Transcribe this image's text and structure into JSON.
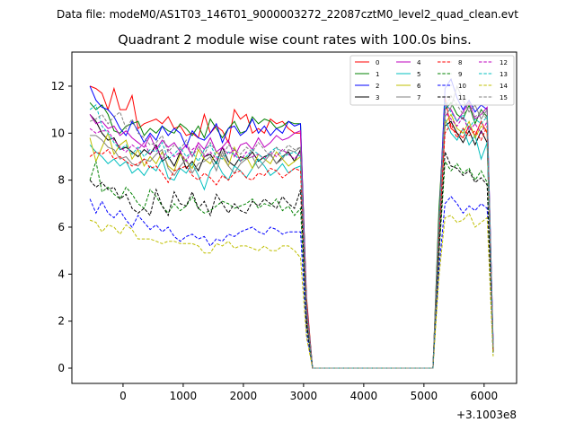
{
  "suptitle": "Data file: modeM0/AS1T03_146T01_9000003272_22087cztM0_level2_quad_clean.evt",
  "chart_data": {
    "type": "line",
    "title": "Quadrant 2 module wise count rates with 100.0s bins.",
    "xlabel": "",
    "ylabel": "",
    "x_offset_label": "+3.1003e8",
    "xlim": [
      -850,
      6540
    ],
    "ylim": [
      -0.65,
      13.45
    ],
    "xticks": [
      0,
      1000,
      2000,
      3000,
      4000,
      5000,
      6000
    ],
    "yticks": [
      0,
      2,
      4,
      6,
      8,
      10,
      12
    ],
    "grid": false,
    "legend_placement": "top-right",
    "x": [
      -550,
      -450,
      -350,
      -250,
      -150,
      -50,
      50,
      150,
      250,
      350,
      450,
      550,
      650,
      750,
      850,
      950,
      1050,
      1150,
      1250,
      1350,
      1450,
      1550,
      1650,
      1750,
      1850,
      1950,
      2050,
      2150,
      2250,
      2350,
      2450,
      2550,
      2650,
      2750,
      2850,
      2950,
      3050,
      3150,
      3250,
      3350,
      3450,
      3550,
      3650,
      3750,
      3850,
      3950,
      4050,
      4150,
      4250,
      4350,
      4450,
      4550,
      4650,
      4750,
      4850,
      4950,
      5050,
      5150,
      5250,
      5350,
      5450,
      5550,
      5650,
      5750,
      5850,
      5950,
      6050,
      6150
    ],
    "series": [
      {
        "name": "0",
        "color": "#ff0000",
        "dashed": false,
        "values": [
          12.0,
          11.9,
          11.7,
          11.0,
          11.9,
          11.0,
          11.0,
          11.6,
          10.2,
          10.4,
          10.5,
          10.6,
          10.4,
          10.7,
          10.2,
          10.3,
          9.9,
          10.0,
          9.8,
          10.8,
          10.0,
          10.3,
          10.1,
          9.6,
          11.0,
          10.6,
          10.8,
          10.0,
          10.2,
          10.0,
          10.6,
          10.4,
          10.5,
          10.2,
          10.0,
          10.0,
          3.0,
          0,
          0,
          0,
          0,
          0,
          0,
          0,
          0,
          0,
          0,
          0,
          0,
          0,
          0,
          0,
          0,
          0,
          0,
          0,
          0,
          0,
          6.5,
          11.5,
          10.2,
          10.0,
          9.8,
          10.3,
          9.9,
          10.5,
          10.0,
          1.0
        ]
      },
      {
        "name": "1",
        "color": "#008000",
        "dashed": false,
        "values": [
          11.3,
          11.0,
          11.2,
          10.8,
          10.1,
          10.0,
          10.3,
          10.4,
          10.5,
          9.9,
          10.2,
          10.0,
          10.3,
          10.1,
          10.0,
          10.4,
          10.2,
          9.9,
          10.3,
          9.8,
          10.6,
          10.2,
          9.8,
          10.2,
          10.5,
          10.0,
          10.1,
          10.7,
          10.4,
          10.6,
          10.5,
          10.2,
          10.3,
          10.5,
          10.4,
          10.4,
          2.8,
          0,
          0,
          0,
          0,
          0,
          0,
          0,
          0,
          0,
          0,
          0,
          0,
          0,
          0,
          0,
          0,
          0,
          0,
          0,
          0,
          0,
          6.8,
          11.0,
          11.3,
          10.8,
          10.6,
          11.2,
          10.4,
          11.0,
          10.7,
          0.9
        ]
      },
      {
        "name": "2",
        "color": "#0000ff",
        "dashed": false,
        "values": [
          12.0,
          11.4,
          11.1,
          11.0,
          10.7,
          10.2,
          9.9,
          10.5,
          10.1,
          9.6,
          10.0,
          9.7,
          10.3,
          9.9,
          10.2,
          10.0,
          9.4,
          10.1,
          9.8,
          9.7,
          10.0,
          10.4,
          9.6,
          10.2,
          10.3,
          9.9,
          10.1,
          10.6,
          10.0,
          10.3,
          9.9,
          10.2,
          10.0,
          10.5,
          10.3,
          10.4,
          2.6,
          0,
          0,
          0,
          0,
          0,
          0,
          0,
          0,
          0,
          0,
          0,
          0,
          0,
          0,
          0,
          0,
          0,
          0,
          0,
          0,
          0,
          6.0,
          11.9,
          12.3,
          11.5,
          11.0,
          11.4,
          10.9,
          11.2,
          11.0,
          1.1
        ]
      },
      {
        "name": "3",
        "color": "#000000",
        "dashed": false,
        "values": [
          10.8,
          10.5,
          10.0,
          9.7,
          9.8,
          9.3,
          9.4,
          9.2,
          9.0,
          9.3,
          9.1,
          9.5,
          8.8,
          9.0,
          8.6,
          9.2,
          8.5,
          8.8,
          8.4,
          9.0,
          9.1,
          8.7,
          9.4,
          8.8,
          8.6,
          9.0,
          8.9,
          9.2,
          8.8,
          9.0,
          9.1,
          8.7,
          9.0,
          9.2,
          8.8,
          9.3,
          2.2,
          0,
          0,
          0,
          0,
          0,
          0,
          0,
          0,
          0,
          0,
          0,
          0,
          0,
          0,
          0,
          0,
          0,
          0,
          0,
          0,
          0,
          5.5,
          10.3,
          10.5,
          10.0,
          9.6,
          10.1,
          9.5,
          10.1,
          9.6,
          0.8
        ]
      },
      {
        "name": "4",
        "color": "#bf00bf",
        "dashed": false,
        "values": [
          10.8,
          10.4,
          10.5,
          10.2,
          10.3,
          9.9,
          10.1,
          9.8,
          9.6,
          9.4,
          9.9,
          9.3,
          9.7,
          9.4,
          9.6,
          9.2,
          9.5,
          9.0,
          9.6,
          9.3,
          9.8,
          9.2,
          9.4,
          9.7,
          9.0,
          9.5,
          9.6,
          9.3,
          9.8,
          9.4,
          9.6,
          9.9,
          9.7,
          9.8,
          10.0,
          10.1,
          2.7,
          0,
          0,
          0,
          0,
          0,
          0,
          0,
          0,
          0,
          0,
          0,
          0,
          0,
          0,
          0,
          0,
          0,
          0,
          0,
          0,
          0,
          6.2,
          11.2,
          11.0,
          10.5,
          10.9,
          11.3,
          10.6,
          10.8,
          11.1,
          1.0
        ]
      },
      {
        "name": "5",
        "color": "#00bfbf",
        "dashed": false,
        "values": [
          9.5,
          9.2,
          9.0,
          8.7,
          8.9,
          8.6,
          8.8,
          8.3,
          8.5,
          8.2,
          8.6,
          8.4,
          8.9,
          8.1,
          8.0,
          8.5,
          8.3,
          8.7,
          8.2,
          7.6,
          8.4,
          8.8,
          8.3,
          8.0,
          8.6,
          8.4,
          8.1,
          8.5,
          8.9,
          8.6,
          8.2,
          8.4,
          8.7,
          8.3,
          8.5,
          8.6,
          2.4,
          0,
          0,
          0,
          0,
          0,
          0,
          0,
          0,
          0,
          0,
          0,
          0,
          0,
          0,
          0,
          0,
          0,
          0,
          0,
          0,
          0,
          5.7,
          10.6,
          10.0,
          9.7,
          10.2,
          9.5,
          9.9,
          8.9,
          9.6,
          0.9
        ]
      },
      {
        "name": "6",
        "color": "#bfbf00",
        "dashed": false,
        "values": [
          9.8,
          8.8,
          9.4,
          10.0,
          9.1,
          9.5,
          9.7,
          8.9,
          9.3,
          8.6,
          9.0,
          8.7,
          9.2,
          8.6,
          8.4,
          9.1,
          8.8,
          8.5,
          9.3,
          8.9,
          8.7,
          9.2,
          9.0,
          8.6,
          9.4,
          8.8,
          9.0,
          8.5,
          9.1,
          8.9,
          8.7,
          9.2,
          8.9,
          8.6,
          8.8,
          9.0,
          2.3,
          0,
          0,
          0,
          0,
          0,
          0,
          0,
          0,
          0,
          0,
          0,
          0,
          0,
          0,
          0,
          0,
          0,
          0,
          0,
          0,
          0,
          5.8,
          10.4,
          10.8,
          10.2,
          10.0,
          10.5,
          9.8,
          10.3,
          10.1,
          0.7
        ]
      },
      {
        "name": "7",
        "color": "#808080",
        "dashed": false,
        "values": [
          9.9,
          9.9,
          9.7,
          9.4,
          9.3,
          8.9,
          9.0,
          8.7,
          8.6,
          8.9,
          8.8,
          9.1,
          9.3,
          8.5,
          8.2,
          8.6,
          8.9,
          8.3,
          8.7,
          8.8,
          9.0,
          8.4,
          9.2,
          8.6,
          8.3,
          8.7,
          8.9,
          9.0,
          8.5,
          8.8,
          9.1,
          8.7,
          8.9,
          9.3,
          9.2,
          9.4,
          2.5,
          0,
          0,
          0,
          0,
          0,
          0,
          0,
          0,
          0,
          0,
          0,
          0,
          0,
          0,
          0,
          0,
          0,
          0,
          0,
          0,
          0,
          6.1,
          10.7,
          11.1,
          12.0,
          11.4,
          10.9,
          11.2,
          10.6,
          11.0,
          0.9
        ]
      },
      {
        "name": "8",
        "color": "#ff0000",
        "dashed": true,
        "values": [
          9.0,
          9.2,
          9.1,
          9.3,
          8.9,
          9.0,
          8.8,
          8.6,
          8.7,
          8.9,
          8.5,
          8.6,
          8.3,
          7.9,
          8.4,
          8.5,
          8.6,
          8.2,
          8.0,
          8.3,
          8.1,
          7.8,
          8.2,
          8.0,
          8.3,
          8.4,
          8.1,
          8.0,
          8.3,
          8.2,
          8.5,
          8.4,
          8.1,
          8.3,
          8.5,
          8.4,
          2.3,
          0,
          0,
          0,
          0,
          0,
          0,
          0,
          0,
          0,
          0,
          0,
          0,
          0,
          0,
          0,
          0,
          0,
          0,
          0,
          0,
          0,
          5.6,
          10.0,
          10.4,
          9.8,
          10.2,
          9.9,
          10.1,
          9.7,
          10.3,
          0.8
        ]
      },
      {
        "name": "9",
        "color": "#008000",
        "dashed": true,
        "values": [
          8.0,
          8.8,
          7.5,
          7.7,
          7.4,
          7.2,
          7.7,
          7.4,
          7.0,
          6.8,
          7.6,
          7.3,
          6.9,
          6.6,
          7.0,
          6.7,
          6.9,
          7.3,
          6.8,
          6.6,
          6.7,
          6.9,
          7.1,
          7.0,
          6.8,
          6.9,
          7.0,
          7.2,
          6.8,
          7.0,
          6.9,
          7.2,
          6.7,
          6.9,
          6.5,
          6.8,
          1.8,
          0,
          0,
          0,
          0,
          0,
          0,
          0,
          0,
          0,
          0,
          0,
          0,
          0,
          0,
          0,
          0,
          0,
          0,
          0,
          0,
          0,
          4.8,
          8.8,
          8.4,
          8.7,
          8.3,
          8.5,
          8.0,
          8.4,
          7.9,
          0.6
        ]
      },
      {
        "name": "10",
        "color": "#0000ff",
        "dashed": true,
        "values": [
          7.2,
          6.6,
          7.1,
          6.6,
          6.4,
          6.7,
          6.3,
          6.0,
          6.5,
          6.2,
          5.9,
          6.1,
          5.8,
          6.0,
          5.6,
          5.4,
          5.6,
          5.7,
          5.5,
          5.6,
          5.2,
          5.5,
          5.4,
          5.7,
          5.6,
          5.8,
          5.9,
          6.0,
          5.8,
          5.7,
          6.0,
          5.9,
          5.7,
          5.8,
          5.8,
          5.8,
          1.5,
          0,
          0,
          0,
          0,
          0,
          0,
          0,
          0,
          0,
          0,
          0,
          0,
          0,
          0,
          0,
          0,
          0,
          0,
          0,
          0,
          0,
          4.2,
          7.0,
          7.3,
          7.0,
          6.6,
          6.9,
          6.7,
          7.0,
          6.8,
          0.6
        ]
      },
      {
        "name": "11",
        "color": "#000000",
        "dashed": true,
        "values": [
          8.0,
          7.7,
          7.9,
          7.6,
          7.7,
          7.2,
          7.4,
          6.8,
          6.6,
          6.8,
          6.5,
          7.6,
          6.9,
          6.5,
          7.5,
          7.0,
          6.9,
          7.5,
          6.8,
          7.1,
          6.5,
          7.4,
          7.0,
          6.6,
          7.0,
          6.7,
          6.6,
          7.1,
          6.9,
          7.2,
          7.0,
          6.8,
          7.3,
          7.0,
          6.8,
          7.6,
          1.9,
          0,
          0,
          0,
          0,
          0,
          0,
          0,
          0,
          0,
          0,
          0,
          0,
          0,
          0,
          0,
          0,
          0,
          0,
          0,
          0,
          0,
          5.0,
          9.2,
          8.6,
          8.5,
          8.2,
          8.4,
          7.9,
          8.1,
          7.8,
          0.7
        ]
      },
      {
        "name": "12",
        "color": "#bf00bf",
        "dashed": true,
        "values": [
          10.2,
          10.0,
          10.1,
          10.1,
          9.7,
          9.4,
          9.2,
          9.5,
          9.3,
          9.6,
          9.1,
          9.4,
          8.9,
          9.3,
          9.0,
          9.2,
          8.8,
          9.3,
          9.5,
          9.0,
          9.2,
          8.9,
          9.4,
          9.1,
          9.3,
          8.8,
          9.2,
          9.0,
          9.1,
          8.9,
          9.2,
          9.0,
          9.3,
          9.1,
          8.9,
          9.2,
          2.4,
          0,
          0,
          0,
          0,
          0,
          0,
          0,
          0,
          0,
          0,
          0,
          0,
          0,
          0,
          0,
          0,
          0,
          0,
          0,
          0,
          0,
          5.9,
          10.9,
          10.6,
          10.3,
          10.7,
          10.1,
          10.4,
          10.0,
          10.5,
          0.9
        ]
      },
      {
        "name": "13",
        "color": "#00bfbf",
        "dashed": true,
        "values": [
          11.0,
          11.2,
          10.3,
          10.0,
          9.6,
          9.3,
          9.5,
          9.1,
          9.4,
          9.0,
          9.3,
          9.2,
          9.6,
          8.9,
          9.1,
          9.4,
          9.0,
          9.2,
          8.8,
          9.3,
          9.5,
          9.0,
          8.9,
          9.2,
          9.1,
          8.8,
          9.0,
          9.3,
          9.1,
          8.9,
          9.2,
          9.4,
          9.0,
          9.1,
          9.2,
          9.0,
          2.4,
          0,
          0,
          0,
          0,
          0,
          0,
          0,
          0,
          0,
          0,
          0,
          0,
          0,
          0,
          0,
          0,
          0,
          0,
          0,
          0,
          0,
          6.0,
          11.3,
          10.9,
          10.5,
          10.8,
          10.2,
          10.6,
          10.4,
          10.7,
          0.9
        ]
      },
      {
        "name": "14",
        "color": "#bfbf00",
        "dashed": true,
        "values": [
          6.3,
          6.2,
          5.8,
          6.1,
          6.0,
          5.7,
          6.1,
          5.9,
          5.5,
          5.5,
          5.5,
          5.4,
          5.3,
          5.4,
          5.4,
          5.3,
          5.3,
          5.3,
          5.2,
          4.9,
          4.9,
          5.3,
          5.2,
          5.4,
          5.1,
          5.2,
          5.2,
          5.1,
          5.0,
          5.2,
          5.0,
          5.0,
          5.2,
          5.2,
          5.0,
          4.7,
          1.3,
          0,
          0,
          0,
          0,
          0,
          0,
          0,
          0,
          0,
          0,
          0,
          0,
          0,
          0,
          0,
          0,
          0,
          0,
          0,
          0,
          0,
          3.9,
          6.4,
          6.5,
          6.2,
          6.3,
          6.6,
          6.0,
          6.2,
          6.4,
          0.5
        ]
      },
      {
        "name": "15",
        "color": "#808080",
        "dashed": true,
        "values": [
          10.5,
          10.6,
          10.8,
          10.4,
          10.7,
          10.9,
          10.2,
          10.6,
          10.0,
          9.8,
          9.5,
          9.6,
          9.9,
          9.2,
          9.5,
          9.3,
          9.7,
          9.0,
          9.4,
          9.1,
          9.6,
          9.2,
          9.0,
          9.5,
          9.3,
          9.1,
          9.4,
          9.2,
          9.6,
          9.3,
          9.0,
          9.4,
          9.2,
          9.5,
          9.3,
          9.4,
          2.5,
          0,
          0,
          0,
          0,
          0,
          0,
          0,
          0,
          0,
          0,
          0,
          0,
          0,
          0,
          0,
          0,
          0,
          0,
          0,
          0,
          0,
          6.1,
          11.0,
          11.6,
          11.2,
          10.8,
          11.1,
          10.7,
          10.9,
          10.6,
          0.9
        ]
      }
    ]
  }
}
